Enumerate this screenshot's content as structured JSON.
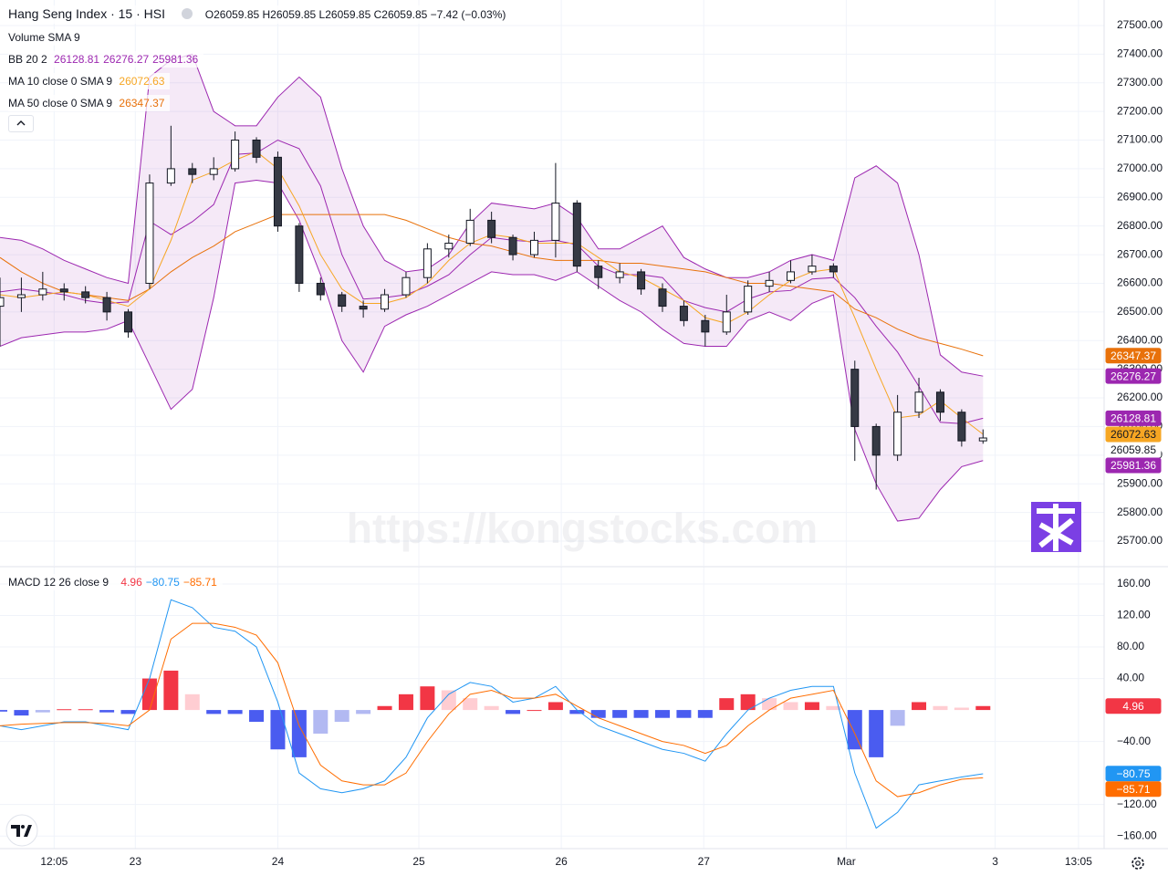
{
  "chart_data": [
    {
      "type": "candlestick",
      "title": "Hang Seng Index · 15 · HSI",
      "summary": "O26059.85 H26059.85 L26059.85 C26059.85 −7.42 (−0.03%)",
      "watermark": "https://kongstocks.com",
      "x": [
        0,
        3,
        6,
        9,
        12,
        15,
        18,
        21,
        24,
        27,
        30,
        33,
        36,
        39,
        42,
        45,
        48,
        51,
        54,
        57,
        60,
        63,
        66,
        69,
        72,
        75,
        78,
        81,
        84,
        87,
        90,
        93,
        96,
        99,
        102,
        105,
        108,
        111,
        114,
        117,
        120,
        123,
        126,
        129,
        132,
        135,
        138
      ],
      "open": [
        26520,
        26550,
        26560,
        26580,
        26570,
        26550,
        26500,
        26600,
        26950,
        27000,
        26980,
        27000,
        27100,
        27040,
        26800,
        26600,
        26560,
        26520,
        26510,
        26560,
        26620,
        26720,
        26740,
        26820,
        26760,
        26700,
        26750,
        26880,
        26660,
        26620,
        26640,
        26580,
        26520,
        26470,
        26430,
        26500,
        26590,
        26610,
        26640,
        26660,
        26300,
        26100,
        26000,
        26150,
        26220,
        26150,
        26050
      ],
      "high": [
        26620,
        26620,
        26640,
        26600,
        26590,
        26570,
        26510,
        26980,
        27150,
        27020,
        27040,
        27130,
        27110,
        27060,
        26810,
        26620,
        26570,
        26540,
        26580,
        26640,
        26740,
        26770,
        26860,
        26850,
        26770,
        26780,
        27020,
        26890,
        26680,
        26670,
        26650,
        26600,
        26540,
        26490,
        26560,
        26610,
        26640,
        26680,
        26700,
        26670,
        26330,
        26110,
        26210,
        26270,
        26230,
        26160,
        26090
      ],
      "low": [
        26380,
        26500,
        26540,
        26540,
        26530,
        26470,
        26410,
        26580,
        26940,
        26950,
        26960,
        26990,
        27020,
        26780,
        26570,
        26540,
        26500,
        26480,
        26500,
        26550,
        26600,
        26690,
        26730,
        26740,
        26680,
        26690,
        26690,
        26640,
        26580,
        26600,
        26560,
        26500,
        26450,
        26380,
        26420,
        26490,
        26570,
        26600,
        26630,
        26620,
        25980,
        25880,
        25980,
        26130,
        26120,
        26030,
        26040
      ],
      "close": [
        26550,
        26560,
        26580,
        26570,
        26550,
        26500,
        26430,
        26950,
        27000,
        26980,
        27000,
        27100,
        27040,
        26800,
        26600,
        26560,
        26520,
        26510,
        26560,
        26620,
        26720,
        26740,
        26820,
        26760,
        26700,
        26750,
        26880,
        26660,
        26620,
        26640,
        26580,
        26520,
        26470,
        26430,
        26500,
        26590,
        26610,
        26640,
        26660,
        26640,
        26100,
        26000,
        26150,
        26220,
        26150,
        26050,
        26060
      ],
      "candle_colors": {
        "up": "#ffffff",
        "down": "#363a45",
        "border": "#131722"
      },
      "last_close": 26059.85,
      "indicators": [
        {
          "name": "Volume SMA 9"
        },
        {
          "name": "BB 20 2",
          "color": "#9c27b0",
          "fill": "rgba(156,39,176,0.1)",
          "lines": [
            {
              "values": [
                26570,
                26580,
                26570,
                26560,
                26540,
                26530,
                26535,
                26817,
                26770,
                26815,
                26875,
                27050,
                27055,
                27100,
                27070,
                26940,
                26700,
                26545,
                26550,
                26560,
                26590,
                26630,
                26700,
                26760,
                26750,
                26745,
                26750,
                26735,
                26660,
                26630,
                26630,
                26620,
                26540,
                26515,
                26500,
                26545,
                26570,
                26575,
                26615,
                26620,
                26550,
                26450,
                26360,
                26240,
                26115,
                26110,
                26129
              ],
              "last": 26128.81
            },
            {
              "values": [
                26760,
                26750,
                26720,
                26680,
                26650,
                26620,
                26600,
                27320,
                27380,
                27400,
                27200,
                27150,
                27150,
                27250,
                27320,
                27250,
                27000,
                26800,
                26680,
                26640,
                26650,
                26700,
                26810,
                26880,
                26870,
                26860,
                26880,
                26830,
                26720,
                26720,
                26760,
                26800,
                26690,
                26650,
                26620,
                26620,
                26640,
                26680,
                26700,
                26680,
                26968,
                27010,
                26950,
                26700,
                26350,
                26290,
                26276
              ],
              "last": 26276.27
            },
            {
              "values": [
                26380,
                26410,
                26420,
                26430,
                26430,
                26440,
                26470,
                26315,
                26160,
                26230,
                26550,
                26950,
                26960,
                26950,
                26820,
                26630,
                26400,
                26290,
                26450,
                26490,
                26520,
                26560,
                26600,
                26640,
                26630,
                26630,
                26610,
                26640,
                26590,
                26540,
                26500,
                26440,
                26390,
                26380,
                26380,
                26470,
                26500,
                26470,
                26530,
                26560,
                26090,
                25900,
                25770,
                25780,
                25880,
                25960,
                25981
              ],
              "last": 25981.36
            }
          ]
        },
        {
          "name": "MA 10 close 0 SMA 9",
          "color": "#f6a623",
          "values": [
            26560,
            26550,
            26560,
            26570,
            26560,
            26540,
            26520,
            26580,
            26750,
            26960,
            26990,
            27030,
            27060,
            27000,
            26870,
            26700,
            26580,
            26530,
            26530,
            26550,
            26600,
            26680,
            26740,
            26770,
            26760,
            26740,
            26740,
            26740,
            26690,
            26640,
            26620,
            26580,
            26540,
            26480,
            26460,
            26500,
            26560,
            26610,
            26640,
            26650,
            26480,
            26300,
            26130,
            26140,
            26190,
            26130,
            26073
          ],
          "last": 26072.63
        },
        {
          "name": "MA 50 close 0 SMA 9",
          "color": "#e8710a",
          "values": [
            26690,
            26640,
            26600,
            26570,
            26560,
            26550,
            26540,
            26580,
            26640,
            26690,
            26730,
            26780,
            26810,
            26840,
            26840,
            26840,
            26840,
            26840,
            26840,
            26820,
            26790,
            26760,
            26740,
            26730,
            26710,
            26690,
            26680,
            26680,
            26680,
            26670,
            26670,
            26660,
            26650,
            26640,
            26620,
            26600,
            26600,
            26590,
            26580,
            26570,
            26510,
            26480,
            26440,
            26410,
            26390,
            26370,
            26347
          ],
          "last": 26347.37
        }
      ],
      "xlim": [
        0,
        155
      ],
      "xticks": [
        {
          "value": 7.6,
          "label": "12:05"
        },
        {
          "value": 19,
          "label": "23"
        },
        {
          "value": 39,
          "label": "24"
        },
        {
          "value": 58.8,
          "label": "25"
        },
        {
          "value": 78.8,
          "label": "26"
        },
        {
          "value": 98.8,
          "label": "27"
        },
        {
          "value": 118.8,
          "label": "Mar"
        },
        {
          "value": 139.7,
          "label": "3"
        },
        {
          "value": 151.4,
          "label": "13:05"
        }
      ],
      "ylim": [
        25614,
        27589
      ],
      "yticks": [
        {
          "value": 25700,
          "label": "25700.00"
        },
        {
          "value": 25800,
          "label": "25800.00"
        },
        {
          "value": 25900,
          "label": "25900.00"
        },
        {
          "value": 26000,
          "label": "26000.00"
        },
        {
          "value": 26100,
          "label": "26100.00"
        },
        {
          "value": 26200,
          "label": "26200.00"
        },
        {
          "value": 26300,
          "label": "26300.00"
        },
        {
          "value": 26400,
          "label": "26400.00"
        },
        {
          "value": 26500,
          "label": "26500.00"
        },
        {
          "value": 26600,
          "label": "26600.00"
        },
        {
          "value": 26700,
          "label": "26700.00"
        },
        {
          "value": 26800,
          "label": "26800.00"
        },
        {
          "value": 26900,
          "label": "26900.00"
        },
        {
          "value": 27000,
          "label": "27000.00"
        },
        {
          "value": 27100,
          "label": "27100.00"
        },
        {
          "value": 27200,
          "label": "27200.00"
        },
        {
          "value": 27300,
          "label": "27300.00"
        },
        {
          "value": 27400,
          "label": "27400.00"
        },
        {
          "value": 27500,
          "label": "27500.00"
        }
      ],
      "grid": true
    },
    {
      "type": "macd",
      "title": "MACD 12 26 close 9",
      "histogram": {
        "values": [
          -2,
          -7,
          -3,
          1,
          1,
          -3,
          -5,
          40,
          50,
          20,
          -5,
          -5,
          -15,
          -50,
          -60,
          -30,
          -15,
          -5,
          5,
          20,
          30,
          25,
          15,
          5,
          -5,
          0,
          10,
          -5,
          -10,
          -10,
          -10,
          -10,
          -10,
          -10,
          15,
          20,
          15,
          10,
          10,
          5,
          -50,
          -60,
          -20,
          10,
          5,
          3,
          5
        ],
        "last": 4.96,
        "colors": {
          "above_rising": "#f23645",
          "above_falling": "#ffcdd2",
          "below_falling": "#4a5cf0",
          "below_rising": "#b2b9f2"
        }
      },
      "macd": {
        "color": "#2196f3",
        "values": [
          -20,
          -25,
          -20,
          -15,
          -15,
          -20,
          -25,
          40,
          140,
          130,
          105,
          100,
          80,
          10,
          -80,
          -100,
          -105,
          -100,
          -90,
          -60,
          -10,
          20,
          35,
          30,
          10,
          15,
          30,
          0,
          -20,
          -30,
          -40,
          -50,
          -55,
          -65,
          -30,
          0,
          15,
          25,
          30,
          30,
          -80,
          -150,
          -130,
          -95,
          -90,
          -85,
          -81
        ],
        "last": {
          "value": -80.75,
          "label": "−80.75"
        }
      },
      "signal": {
        "color": "#ff6d00",
        "values": [
          -20,
          -18,
          -17,
          -16,
          -16,
          -17,
          -20,
          0,
          90,
          110,
          110,
          105,
          95,
          60,
          -20,
          -70,
          -90,
          -95,
          -95,
          -80,
          -40,
          -5,
          20,
          25,
          15,
          15,
          20,
          5,
          -10,
          -20,
          -30,
          -40,
          -45,
          -55,
          -45,
          -20,
          0,
          15,
          20,
          25,
          -30,
          -90,
          -110,
          -105,
          -95,
          -88,
          -86
        ],
        "last": {
          "value": -85.71,
          "label": "−85.71"
        }
      },
      "ylim": [
        -176,
        182
      ],
      "yticks": [
        {
          "value": 160,
          "label": "160.00"
        },
        {
          "value": 120,
          "label": "120.00"
        },
        {
          "value": 80,
          "label": "80.00"
        },
        {
          "value": 40,
          "label": "40.00"
        },
        {
          "value": -40,
          "label": "−40.00"
        },
        {
          "value": -120,
          "label": "−120.00"
        },
        {
          "value": -160,
          "label": "−160.00"
        }
      ],
      "grid": true
    }
  ]
}
